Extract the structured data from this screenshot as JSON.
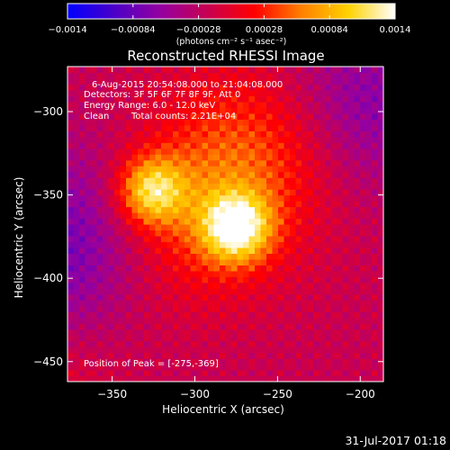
{
  "chart_data": {
    "type": "heatmap",
    "title": "Reconstructed RHESSI Image",
    "xlabel": "Heliocentric X (arcsec)",
    "ylabel": "Heliocentric Y (arcsec)",
    "xlim": [
      -377,
      -186
    ],
    "ylim": [
      -462,
      -273
    ],
    "xticks": [
      -350,
      -300,
      -250,
      -200
    ],
    "xtick_labels": [
      "−350",
      "−300",
      "−250",
      "−200"
    ],
    "yticks": [
      -300,
      -350,
      -400,
      -450
    ],
    "ytick_labels": [
      "−300",
      "−350",
      "−400",
      "−450"
    ],
    "colorbar": {
      "min": -0.0014,
      "max": 0.0014,
      "ticks": [
        -0.0014,
        -0.00084,
        -0.00028,
        0.00028,
        0.00084,
        0.0014
      ],
      "tick_labels": [
        "−0.0014",
        "−0.00084",
        "−0.00028",
        "0.00028",
        "0.00084",
        "0.0014"
      ],
      "unit": "(photons cm⁻² s⁻¹ asec⁻²)",
      "colormap": [
        "#0000ff",
        "#4b00c8",
        "#9600a0",
        "#c80050",
        "#ff0000",
        "#ff8000",
        "#ffd200",
        "#ffffff"
      ]
    },
    "sources": [
      {
        "x": -275,
        "y": -369,
        "peak": 0.0014
      },
      {
        "x": -326,
        "y": -347,
        "peak": 0.00115
      }
    ],
    "annotations": {
      "time_range": "6-Aug-2015 20:54:08.000 to 21:04:08.000",
      "detectors": "Detectors: 3F 5F 6F 7F 8F 9F, Att 0",
      "energy": "Energy Range: 6.0 - 12.0 keV",
      "clean": "Clean",
      "counts": "Total counts: 2.21E+04",
      "peak": "Position of Peak = [-275,-369]"
    },
    "timestamp": "31-Jul-2017 01:18",
    "grid": false,
    "legend": "colorbar-top"
  }
}
